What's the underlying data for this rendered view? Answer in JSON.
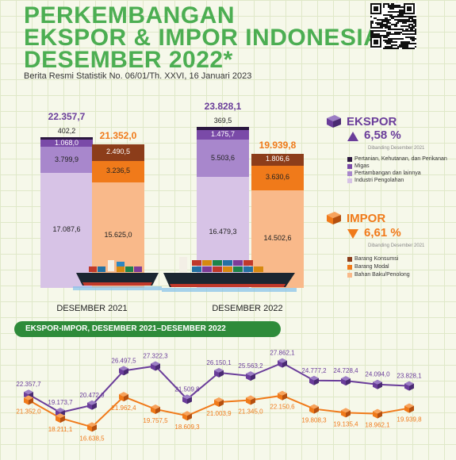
{
  "header": {
    "title_line1": "PERKEMBANGAN",
    "title_line2": "EKSPOR & IMPOR INDONESIA",
    "title_line3": "DESEMBER 2022*",
    "subtitle": "Berita Resmi Statistik No. 06/01/Th. XXVI, 16 Januari 2023"
  },
  "colors": {
    "title_green": "#4cae52",
    "ekspor_purple": "#6a3d9a",
    "impor_orange": "#f07a1a",
    "migas": "#7a4aa8",
    "pertambangan": "#a887cc",
    "industri": "#d7c3e6",
    "pertanian": "#2b1740",
    "konsumsi": "#8c3d1a",
    "modal": "#f07a1a",
    "bahan_baku": "#f9b98a"
  },
  "summary": {
    "ekspor": {
      "label": "EKSPOR",
      "change": "6,58 %",
      "note": "Dibanding Desember 2021",
      "arrow": "up"
    },
    "impor": {
      "label": "IMPOR",
      "change": "6,61 %",
      "note": "Dibanding Desember 2021",
      "arrow": "down"
    }
  },
  "legend": {
    "ekspor": [
      "Pertanian, Kehutanan, dan Perikanan",
      "Migas",
      "Pertambangan dan lainnya",
      "Industri Pengolahan"
    ],
    "impor": [
      "Barang Konsumsi",
      "Barang Modal",
      "Bahan Baku/Penolong"
    ]
  },
  "line_section_title": "EKSPOR-IMPOR, DESEMBER 2021–DESEMBER 2022",
  "chart_data": [
    {
      "type": "bar",
      "categories": [
        "DESEMBER 2021",
        "DESEMBER 2022"
      ],
      "ekspor": {
        "totals": [
          "22.357,7",
          "23.828,1"
        ],
        "components": [
          {
            "name": "Industri Pengolahan",
            "values": [
              17087.6,
              16479.3
            ],
            "labels": [
              "17.087,6",
              "16.479,3"
            ]
          },
          {
            "name": "Pertambangan dan lainnya",
            "values": [
              3799.9,
              5503.6
            ],
            "labels": [
              "3.799,9",
              "5.503,6"
            ]
          },
          {
            "name": "Migas",
            "values": [
              1068.0,
              1475.7
            ],
            "labels": [
              "1.068,0",
              "1.475,7"
            ]
          },
          {
            "name": "Pertanian, Kehutanan, dan Perikanan",
            "values": [
              402.2,
              369.5
            ],
            "labels": [
              "402,2",
              "369,5"
            ]
          }
        ]
      },
      "impor": {
        "totals": [
          "21.352,0",
          "19.939,8"
        ],
        "components": [
          {
            "name": "Bahan Baku/Penolong",
            "values": [
              15625.0,
              14502.6
            ],
            "labels": [
              "15.625,0",
              "14.502,6"
            ]
          },
          {
            "name": "Barang Modal",
            "values": [
              3236.5,
              3630.6
            ],
            "labels": [
              "3.236,5",
              "3.630,6"
            ]
          },
          {
            "name": "Barang Konsumsi",
            "values": [
              2490.5,
              1806.6
            ],
            "labels": [
              "2.490,5",
              "1.806,6"
            ]
          }
        ]
      }
    },
    {
      "type": "line",
      "title": "EKSPOR-IMPOR, DESEMBER 2021–DESEMBER 2022",
      "series": [
        {
          "name": "EKSPOR",
          "values": [
            22357.7,
            19173.7,
            20472.9,
            26497.5,
            27322.3,
            21509.8,
            26150.1,
            25563.2,
            27862.1,
            24777.2,
            24728.4,
            24094.0,
            23828.1
          ],
          "labels": [
            "22.357,7",
            "19.173,7",
            "20.472,9",
            "26.497,5",
            "27.322,3",
            "21.509,8",
            "26.150,1",
            "25.563,2",
            "27.862,1",
            "24.777,2",
            "24.728,4",
            "24.094,0",
            "23.828,1"
          ]
        },
        {
          "name": "IMPOR",
          "values": [
            21352.0,
            18211.1,
            16638.5,
            21962.4,
            19757.5,
            18609.3,
            21003.9,
            21345.0,
            22150.6,
            19808.3,
            19135.4,
            18962.1,
            19939.8
          ],
          "labels": [
            "21.352,0",
            "18.211,1",
            "16.638,5",
            "21.962,4",
            "19.757,5",
            "18.609,3",
            "21.003,9",
            "21.345,0",
            "22.150,6",
            "19.808,3",
            "19.135,4",
            "18.962,1",
            "19.939,8"
          ]
        }
      ]
    }
  ]
}
